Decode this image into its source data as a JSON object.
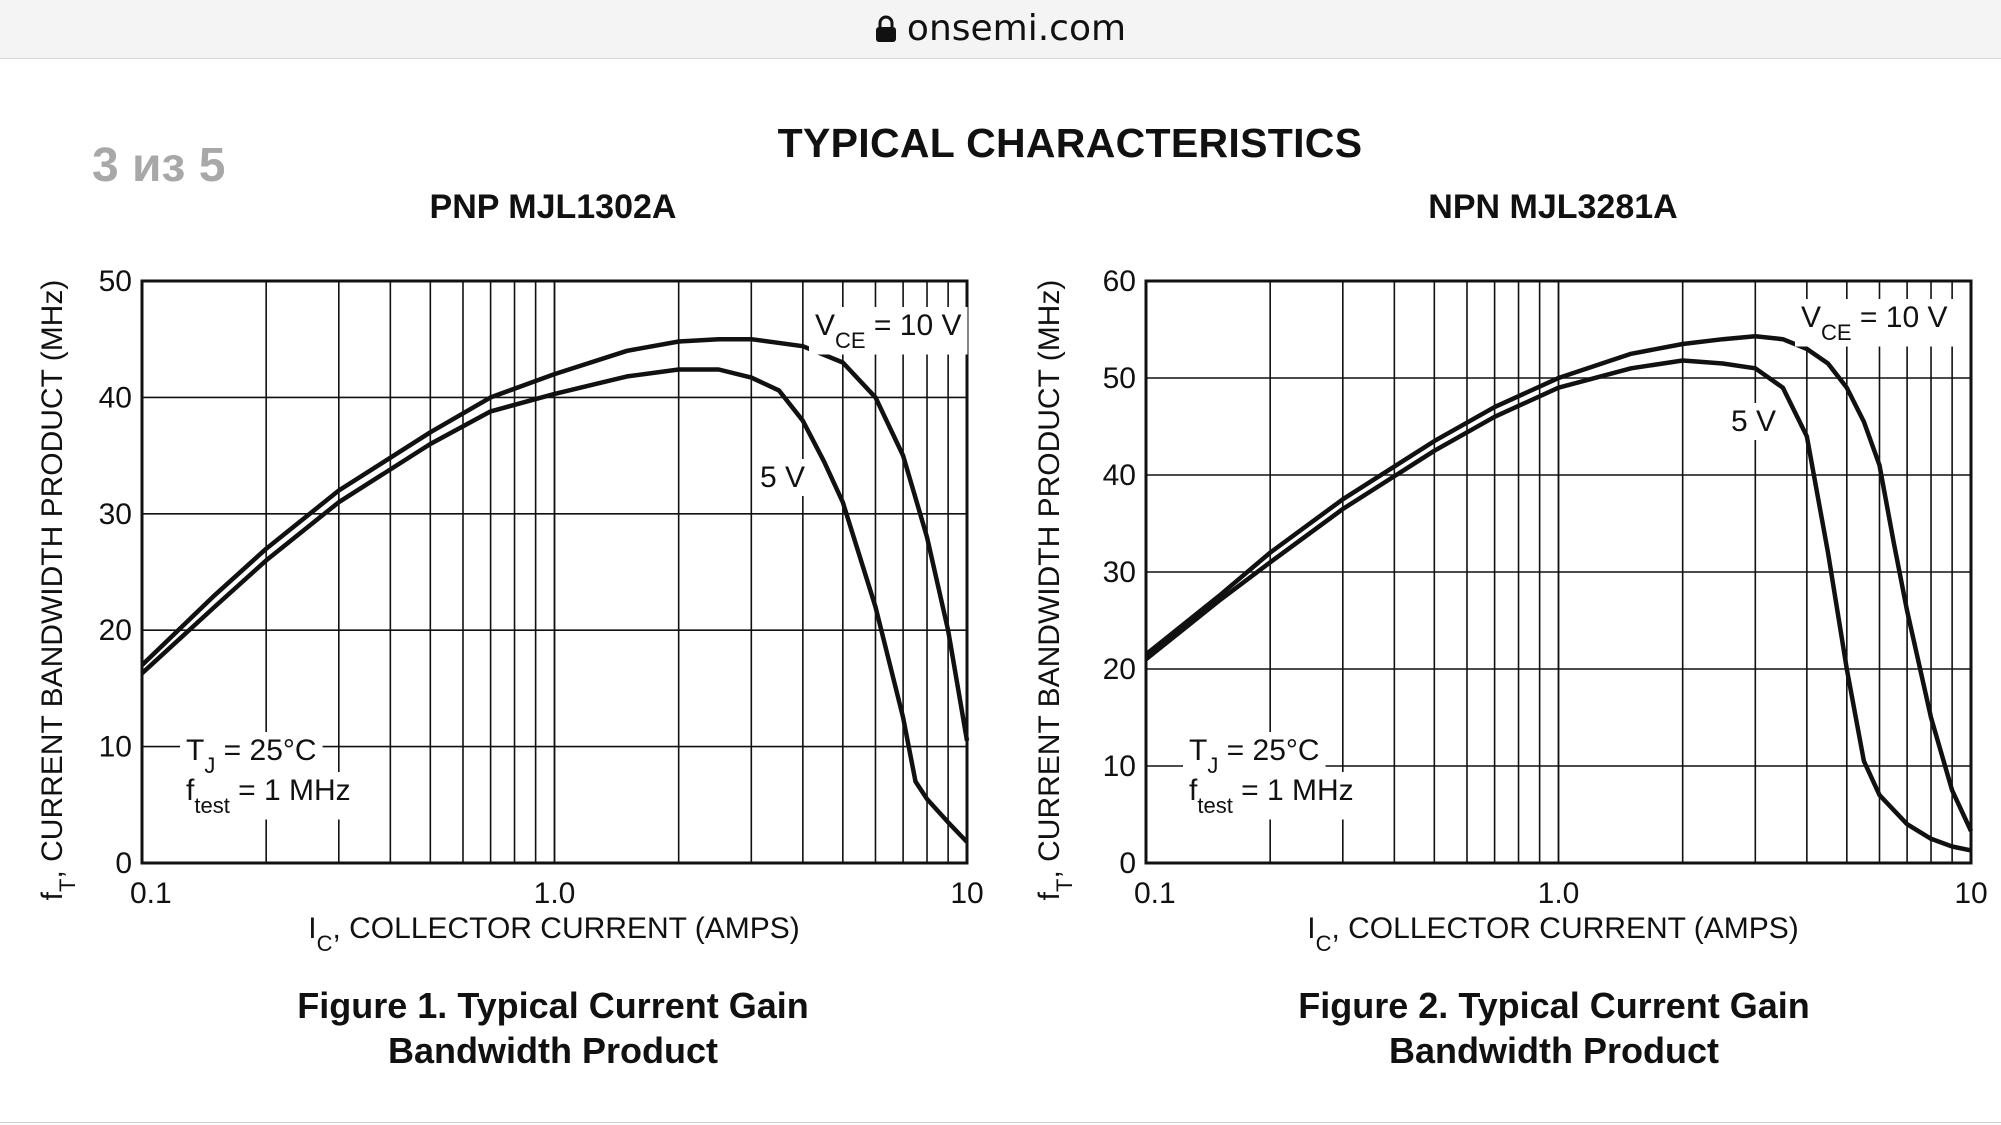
{
  "browser": {
    "url": "onsemi.com",
    "icons": {
      "lock": "lock-icon"
    }
  },
  "page_indicator": "3 из 5",
  "main_title": "TYPICAL CHARACTERISTICS",
  "chart_data": [
    {
      "type": "line",
      "subtitle": "PNP MJL1302A",
      "caption_line1": "Figure 1. Typical Current Gain",
      "caption_line2": "Bandwidth Product",
      "xlabel_main": "I",
      "xlabel_sub": "C",
      "xlabel_rest": ", COLLECTOR CURRENT (AMPS)",
      "ylabel_main": "f",
      "ylabel_sub": "T",
      "ylabel_rest": ", CURRENT BANDWIDTH PRODUCT (MHz)",
      "xscale": "log",
      "xlim": [
        0.1,
        10
      ],
      "ylim": [
        0,
        50
      ],
      "xticks": [
        0.1,
        1.0,
        10
      ],
      "xtick_labels": [
        "0.1",
        "1.0",
        "10"
      ],
      "yticks": [
        0,
        10,
        20,
        30,
        40,
        50
      ],
      "ytick_labels": [
        "0",
        "10",
        "20",
        "30",
        "40",
        "50"
      ],
      "grid": true,
      "annotation_tj_main": "T",
      "annotation_tj_sub": "J",
      "annotation_tj_rest": " = 25°C",
      "annotation_f_main": "f",
      "annotation_f_sub": "test",
      "annotation_f_rest": " = 1 MHz",
      "series": [
        {
          "name": "VCE = 10 V",
          "label_main": "V",
          "label_sub": "CE",
          "label_rest": " = 10 V",
          "x": [
            0.1,
            0.15,
            0.2,
            0.3,
            0.5,
            0.7,
            1.0,
            1.5,
            2.0,
            2.5,
            3.0,
            4.0,
            5.0,
            6.0,
            7.0,
            8.0,
            9.0,
            10.0
          ],
          "y": [
            17,
            23,
            27,
            32,
            37,
            40,
            42,
            44,
            44.8,
            45,
            45,
            44.4,
            43,
            40,
            35,
            28,
            20,
            10.5
          ]
        },
        {
          "name": "5 V",
          "label_main": "5 V",
          "x": [
            0.1,
            0.15,
            0.2,
            0.3,
            0.5,
            0.7,
            1.0,
            1.5,
            2.0,
            2.5,
            3.0,
            3.5,
            4.0,
            4.5,
            5.0,
            6.0,
            7.0,
            7.5,
            8.0,
            9.0,
            10.0
          ],
          "y": [
            16.3,
            22,
            26,
            31,
            36,
            38.8,
            40.3,
            41.8,
            42.4,
            42.4,
            41.7,
            40.6,
            38,
            34.5,
            31,
            22,
            12.5,
            7,
            5.5,
            3.5,
            1.8
          ]
        }
      ]
    },
    {
      "type": "line",
      "subtitle": "NPN MJL3281A",
      "caption_line1": "Figure 2. Typical Current Gain",
      "caption_line2": "Bandwidth Product",
      "xlabel_main": "I",
      "xlabel_sub": "C",
      "xlabel_rest": ", COLLECTOR CURRENT (AMPS)",
      "ylabel_main": "f",
      "ylabel_sub": "T",
      "ylabel_rest": ", CURRENT BANDWIDTH PRODUCT (MHz)",
      "xscale": "log",
      "xlim": [
        0.1,
        10
      ],
      "ylim": [
        0,
        60
      ],
      "xticks": [
        0.1,
        1.0,
        10
      ],
      "xtick_labels": [
        "0.1",
        "1.0",
        "10"
      ],
      "yticks": [
        0,
        10,
        20,
        30,
        40,
        50,
        60
      ],
      "ytick_labels": [
        "0",
        "10",
        "20",
        "30",
        "40",
        "50",
        "60"
      ],
      "grid": true,
      "annotation_tj_main": "T",
      "annotation_tj_sub": "J",
      "annotation_tj_rest": " = 25°C",
      "annotation_f_main": "f",
      "annotation_f_sub": "test",
      "annotation_f_rest": " = 1 MHz",
      "series": [
        {
          "name": "VCE = 10 V",
          "label_main": "V",
          "label_sub": "CE",
          "label_rest": " = 10 V",
          "x": [
            0.1,
            0.15,
            0.2,
            0.3,
            0.5,
            0.7,
            1.0,
            1.5,
            2.0,
            2.5,
            3.0,
            3.5,
            4.0,
            4.5,
            5.0,
            5.5,
            6.0,
            6.5,
            7.0,
            8.0,
            9.0,
            10.0
          ],
          "y": [
            21.5,
            27.5,
            32,
            37.5,
            43.5,
            47,
            50,
            52.5,
            53.5,
            54,
            54.3,
            54,
            53,
            51.5,
            49,
            45.5,
            41,
            33,
            26,
            15,
            7.5,
            3.3
          ]
        },
        {
          "name": "5 V",
          "label_main": "5 V",
          "x": [
            0.1,
            0.15,
            0.2,
            0.3,
            0.5,
            0.7,
            1.0,
            1.5,
            2.0,
            2.5,
            3.0,
            3.5,
            4.0,
            4.5,
            5.0,
            5.5,
            6.0,
            7.0,
            8.0,
            9.0,
            10.0
          ],
          "y": [
            21,
            27,
            31,
            36.5,
            42.5,
            46,
            49,
            51,
            51.8,
            51.5,
            51,
            49,
            44,
            32,
            20,
            10.5,
            7,
            4,
            2.5,
            1.7,
            1.3
          ]
        }
      ]
    }
  ]
}
